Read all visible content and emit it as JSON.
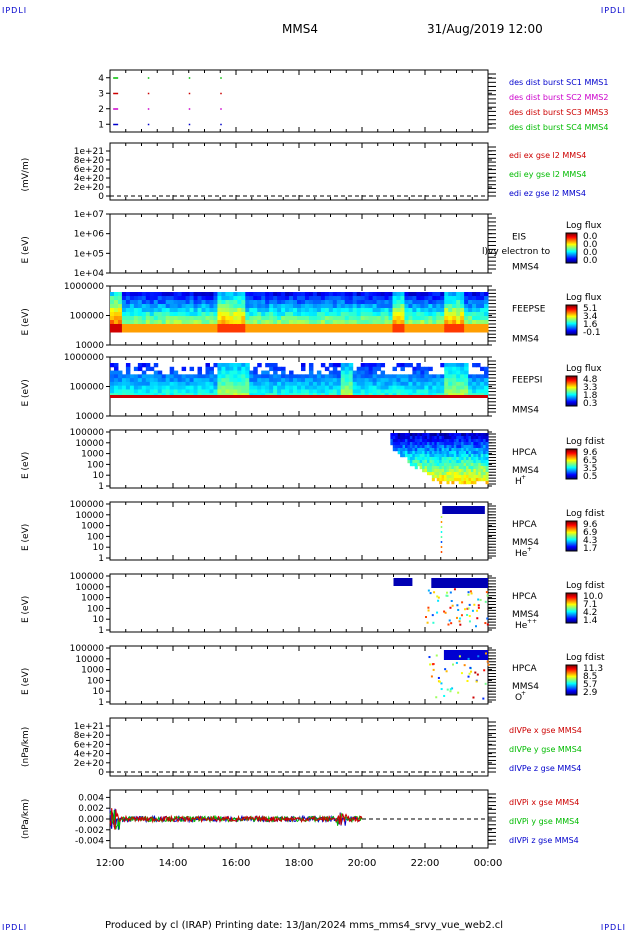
{
  "header": {
    "corner_left_top": "IPDLI",
    "corner_right_top": "IPDLI",
    "corner_left_bottom": "IPDLI",
    "corner_right_bottom": "IPDLI",
    "spacecraft": "MMS4",
    "date": "31/Aug/2019 12:00"
  },
  "footer": {
    "text": "Produced by cl (IRAP)   Printing date: 13/Jan/2024   mms_mms4_srvy_vue_web2.cl"
  },
  "time_axis": {
    "labels": [
      "12:00",
      "14:00",
      "16:00",
      "18:00",
      "20:00",
      "22:00",
      "00:00"
    ],
    "hours": [
      12,
      14,
      16,
      18,
      20,
      22,
      24
    ]
  },
  "colors": {
    "c1": "#0000cc",
    "c2": "#cc00cc",
    "c3": "#cc0000",
    "c4": "#00bb00",
    "ex": "#cc0000",
    "ey": "#00bb00",
    "ez": "#0000cc"
  },
  "chart_data": [
    {
      "type": "scatter",
      "panel": "burst",
      "ylabel": "",
      "yticks": [
        "1",
        "2",
        "3",
        "4"
      ],
      "ylim": [
        0.5,
        4.5
      ],
      "legend": [
        "des dist burst SC1 MMS1",
        "des dist burst SC2 MMS2",
        "des dist burst SC3 MMS3",
        "des dist burst SC4 MMS4"
      ],
      "series": [
        {
          "y": 1,
          "x": [
            12.1,
            13.2,
            14.5,
            15.5
          ]
        },
        {
          "y": 2,
          "x": [
            12.1,
            13.2,
            14.5,
            15.5
          ]
        },
        {
          "y": 3,
          "x": [
            12.1,
            13.2,
            14.5,
            15.5
          ]
        },
        {
          "y": 4,
          "x": [
            12.1,
            13.2,
            14.5,
            15.5
          ]
        }
      ]
    },
    {
      "type": "line",
      "panel": "edi_e",
      "ylabel": "(mV/m)",
      "yticks": [
        "0",
        "2e+20",
        "4e+20",
        "6e+20",
        "8e+20",
        "1e+21"
      ],
      "ylim": [
        0,
        1e+21
      ],
      "legend": [
        "edi ex gse l2 MMS4",
        "edi ey gse l2 MMS4",
        "edi ez gse l2 MMS4"
      ]
    },
    {
      "type": "heatmap",
      "panel": "eis",
      "ylabel": "E (eV)",
      "yticks": [
        "1e+04",
        "1e+05",
        "1e+06",
        "1e+07"
      ],
      "instrument": "EIS",
      "spacecraft": "MMS4",
      "overlay_text": "l)vy electron to",
      "colorbar_title": "Log flux",
      "colorbar_labels": [
        "0.0",
        "0.0",
        "0.0",
        "0.0"
      ]
    },
    {
      "type": "heatmap",
      "panel": "feepse",
      "ylabel": "E (eV)",
      "yticks": [
        "10000",
        "100000",
        "1000000"
      ],
      "instrument": "FEEPSE",
      "spacecraft": "MMS4",
      "colorbar_title": "Log flux",
      "colorbar_labels": [
        "5.1",
        "3.4",
        "1.6",
        "-0.1"
      ]
    },
    {
      "type": "heatmap",
      "panel": "feepsi",
      "ylabel": "E (eV)",
      "yticks": [
        "10000",
        "100000",
        "1000000"
      ],
      "instrument": "FEEPSI",
      "spacecraft": "MMS4",
      "colorbar_title": "Log flux",
      "colorbar_labels": [
        "4.8",
        "3.3",
        "1.8",
        "0.3"
      ]
    },
    {
      "type": "heatmap",
      "panel": "hpca_h",
      "ylabel": "E (eV)",
      "yticks": [
        "1",
        "10",
        "100",
        "1000",
        "10000",
        "100000"
      ],
      "instrument": "HPCA",
      "spacecraft": "MMS4",
      "species": "H",
      "charge": "+",
      "colorbar_title": "Log fdist",
      "colorbar_labels": [
        "9.6",
        "6.5",
        "3.5",
        "0.5"
      ]
    },
    {
      "type": "heatmap",
      "panel": "hpca_he",
      "ylabel": "E (eV)",
      "yticks": [
        "1",
        "10",
        "100",
        "1000",
        "10000",
        "100000"
      ],
      "instrument": "HPCA",
      "spacecraft": "MMS4",
      "species": "He",
      "charge": "+",
      "colorbar_title": "Log fdist",
      "colorbar_labels": [
        "9.6",
        "6.9",
        "4.3",
        "1.7"
      ]
    },
    {
      "type": "heatmap",
      "panel": "hpca_he2",
      "ylabel": "E (eV)",
      "yticks": [
        "1",
        "10",
        "100",
        "1000",
        "10000",
        "100000"
      ],
      "instrument": "HPCA",
      "spacecraft": "MMS4",
      "species": "He",
      "charge": "++",
      "colorbar_title": "Log fdist",
      "colorbar_labels": [
        "10.0",
        "7.1",
        "4.2",
        "1.4"
      ]
    },
    {
      "type": "heatmap",
      "panel": "hpca_o",
      "ylabel": "E (eV)",
      "yticks": [
        "1",
        "10",
        "100",
        "1000",
        "10000",
        "100000"
      ],
      "instrument": "HPCA",
      "spacecraft": "MMS4",
      "species": "O",
      "charge": "+",
      "colorbar_title": "Log fdist",
      "colorbar_labels": [
        "11.3",
        "8.5",
        "5.7",
        "2.9"
      ]
    },
    {
      "type": "line",
      "panel": "divpe",
      "ylabel": "(nPa/km)",
      "yticks": [
        "0",
        "2e+20",
        "4e+20",
        "6e+20",
        "8e+20",
        "1e+21"
      ],
      "ylim": [
        0,
        1e+21
      ],
      "legend": [
        "dIVPe x gse MMS4",
        "dIVPe y gse MMS4",
        "dIVPe z gse MMS4"
      ]
    },
    {
      "type": "line",
      "panel": "divpi",
      "ylabel": "(nPa/km)",
      "yticks": [
        "-0.004",
        "-0.002",
        "0.000",
        "0.002",
        "0.004"
      ],
      "ylim": [
        -0.005,
        0.005
      ],
      "legend": [
        "dIVPi x gse MMS4",
        "dIVPi y gse MMS4",
        "dIVPi z gse MMS4"
      ]
    }
  ]
}
